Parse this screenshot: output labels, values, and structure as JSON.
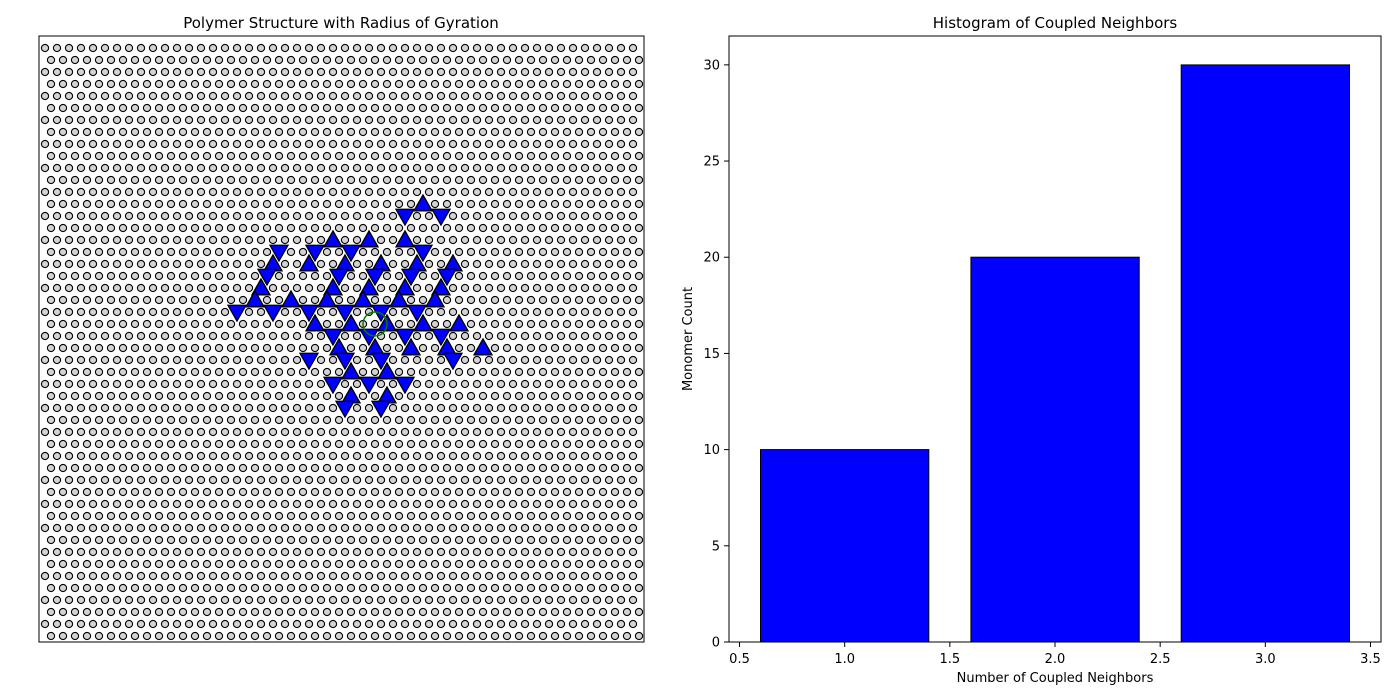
{
  "figure": {
    "background": "#ffffff"
  },
  "chart_data": [
    {
      "type": "scatter",
      "title": "Polymer Structure with Radius of Gyration",
      "xlabel": "",
      "ylabel": "",
      "axes_visible": false,
      "grid": false,
      "lattice": {
        "kind": "triangular",
        "rows": 51,
        "cols": 50,
        "marker": "circle",
        "facecolor": "#d3d3d3",
        "edgecolor": "#000000"
      },
      "monomers": [
        {
          "row": 13,
          "col": 31,
          "orient": "up"
        },
        {
          "row": 14,
          "col": 30,
          "orient": "down"
        },
        {
          "row": 14,
          "col": 33,
          "orient": "down"
        },
        {
          "row": 16,
          "col": 24,
          "orient": "up"
        },
        {
          "row": 16,
          "col": 27,
          "orient": "up"
        },
        {
          "row": 16,
          "col": 30,
          "orient": "up"
        },
        {
          "row": 17,
          "col": 19,
          "orient": "down"
        },
        {
          "row": 17,
          "col": 22,
          "orient": "down"
        },
        {
          "row": 17,
          "col": 25,
          "orient": "down"
        },
        {
          "row": 17,
          "col": 31,
          "orient": "down"
        },
        {
          "row": 18,
          "col": 19,
          "orient": "up"
        },
        {
          "row": 18,
          "col": 22,
          "orient": "up"
        },
        {
          "row": 18,
          "col": 25,
          "orient": "up"
        },
        {
          "row": 18,
          "col": 28,
          "orient": "up"
        },
        {
          "row": 18,
          "col": 31,
          "orient": "up"
        },
        {
          "row": 18,
          "col": 34,
          "orient": "up"
        },
        {
          "row": 19,
          "col": 18,
          "orient": "down"
        },
        {
          "row": 19,
          "col": 24,
          "orient": "down"
        },
        {
          "row": 19,
          "col": 27,
          "orient": "down"
        },
        {
          "row": 19,
          "col": 30,
          "orient": "down"
        },
        {
          "row": 19,
          "col": 33,
          "orient": "down"
        },
        {
          "row": 20,
          "col": 18,
          "orient": "up"
        },
        {
          "row": 20,
          "col": 24,
          "orient": "up"
        },
        {
          "row": 20,
          "col": 27,
          "orient": "up"
        },
        {
          "row": 20,
          "col": 30,
          "orient": "up"
        },
        {
          "row": 20,
          "col": 33,
          "orient": "up"
        },
        {
          "row": 21,
          "col": 17,
          "orient": "up"
        },
        {
          "row": 21,
          "col": 20,
          "orient": "up"
        },
        {
          "row": 21,
          "col": 23,
          "orient": "up"
        },
        {
          "row": 21,
          "col": 26,
          "orient": "up"
        },
        {
          "row": 21,
          "col": 29,
          "orient": "up"
        },
        {
          "row": 21,
          "col": 32,
          "orient": "up"
        },
        {
          "row": 22,
          "col": 16,
          "orient": "down"
        },
        {
          "row": 22,
          "col": 19,
          "orient": "down"
        },
        {
          "row": 22,
          "col": 22,
          "orient": "down"
        },
        {
          "row": 22,
          "col": 25,
          "orient": "down"
        },
        {
          "row": 22,
          "col": 28,
          "orient": "down"
        },
        {
          "row": 22,
          "col": 31,
          "orient": "down"
        },
        {
          "row": 23,
          "col": 22,
          "orient": "up"
        },
        {
          "row": 23,
          "col": 25,
          "orient": "up"
        },
        {
          "row": 23,
          "col": 28,
          "orient": "up"
        },
        {
          "row": 23,
          "col": 31,
          "orient": "up"
        },
        {
          "row": 23,
          "col": 34,
          "orient": "up"
        },
        {
          "row": 24,
          "col": 24,
          "orient": "down"
        },
        {
          "row": 24,
          "col": 27,
          "orient": "down"
        },
        {
          "row": 24,
          "col": 30,
          "orient": "down"
        },
        {
          "row": 24,
          "col": 33,
          "orient": "down"
        },
        {
          "row": 25,
          "col": 24,
          "orient": "up"
        },
        {
          "row": 25,
          "col": 27,
          "orient": "up"
        },
        {
          "row": 25,
          "col": 30,
          "orient": "up"
        },
        {
          "row": 25,
          "col": 33,
          "orient": "up"
        },
        {
          "row": 25,
          "col": 36,
          "orient": "up"
        },
        {
          "row": 26,
          "col": 22,
          "orient": "down"
        },
        {
          "row": 26,
          "col": 25,
          "orient": "down"
        },
        {
          "row": 26,
          "col": 28,
          "orient": "down"
        },
        {
          "row": 26,
          "col": 34,
          "orient": "down"
        },
        {
          "row": 27,
          "col": 25,
          "orient": "up"
        },
        {
          "row": 27,
          "col": 28,
          "orient": "up"
        },
        {
          "row": 28,
          "col": 24,
          "orient": "down"
        },
        {
          "row": 28,
          "col": 27,
          "orient": "down"
        },
        {
          "row": 28,
          "col": 30,
          "orient": "down"
        },
        {
          "row": 29,
          "col": 25,
          "orient": "up"
        },
        {
          "row": 29,
          "col": 28,
          "orient": "up"
        },
        {
          "row": 30,
          "col": 25,
          "orient": "down"
        },
        {
          "row": 30,
          "col": 28,
          "orient": "down"
        }
      ],
      "monomer_color": "#0000ff",
      "monomer_edge": "#000000",
      "radius_of_gyration": {
        "center_row": 23,
        "center_col": 27,
        "radius_in_spacings": 1,
        "color": "#008000"
      }
    },
    {
      "type": "bar",
      "title": "Histogram of Coupled Neighbors",
      "xlabel": "Number of Coupled Neighbors",
      "ylabel": "Monomer Count",
      "x": [
        1,
        2,
        3
      ],
      "values": [
        10,
        20,
        30
      ],
      "bar_width": 0.8,
      "xlim": [
        0.45,
        3.55
      ],
      "ylim": [
        0,
        31.5
      ],
      "xticks": [
        0.5,
        1.0,
        1.5,
        2.0,
        2.5,
        3.0,
        3.5
      ],
      "xtick_labels": [
        "0.5",
        "1.0",
        "1.5",
        "2.0",
        "2.5",
        "3.0",
        "3.5"
      ],
      "yticks": [
        0,
        5,
        10,
        15,
        20,
        25,
        30
      ],
      "ytick_labels": [
        "0",
        "5",
        "10",
        "15",
        "20",
        "25",
        "30"
      ],
      "color": "#0000ff",
      "edgecolor": "#000000",
      "grid": false,
      "legend": "none"
    }
  ]
}
